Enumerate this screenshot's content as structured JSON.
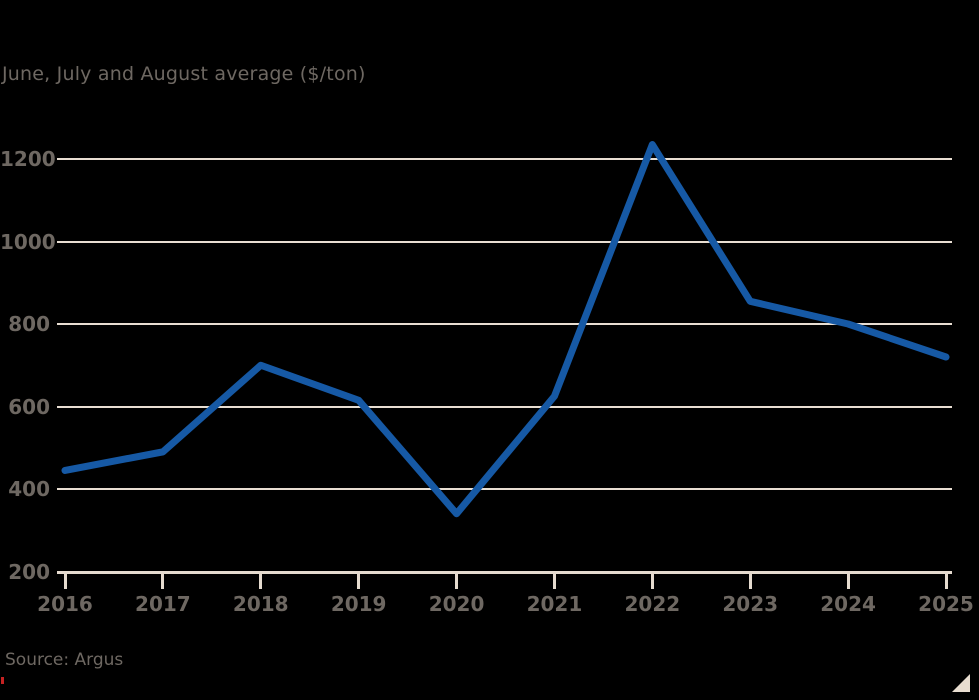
{
  "subtitle": "June, July and August average ($/ton)",
  "source": "Source: Argus",
  "colors": {
    "background": "#000000",
    "line": "#1659a5",
    "grid": "#e8ded2",
    "axis": "#e5dbcf",
    "label_text": "#6e6862",
    "corner_triangle": "#e8ddd0",
    "red_artifact": "#c62222"
  },
  "chart_data": {
    "type": "line",
    "x": [
      2016,
      2017,
      2018,
      2019,
      2020,
      2021,
      2022,
      2023,
      2024,
      2025
    ],
    "values": [
      445,
      490,
      700,
      615,
      340,
      625,
      1235,
      855,
      800,
      720
    ],
    "title": "",
    "subtitle": "June, July and August average ($/ton)",
    "xlabel": "",
    "ylabel": "$/ton",
    "ylim": [
      200,
      1300
    ],
    "yticks": [
      1200,
      1000,
      800,
      600,
      400,
      200
    ],
    "grid": "horizontal-only",
    "legend": "none",
    "source": "Source: Argus"
  }
}
